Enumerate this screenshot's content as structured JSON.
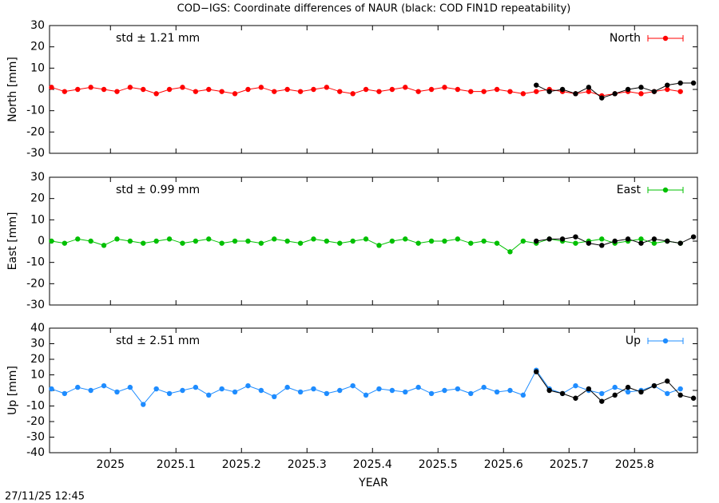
{
  "title": "COD−IGS: Coordinate differences of NAUR (black: COD FIN1D repeatability)",
  "timestamp": "27/11/25 12:45",
  "chart_data": [
    {
      "type": "line",
      "ylabel": "North [mm]",
      "annotation": "std ± 1.21 mm",
      "xlim": [
        2024.907,
        2025.896
      ],
      "xticks": [
        2025,
        2025.1,
        2025.2,
        2025.3,
        2025.4,
        2025.5,
        2025.6,
        2025.7,
        2025.8
      ],
      "ylim": [
        -30,
        30
      ],
      "yticks": [
        -30,
        -20,
        -10,
        0,
        10,
        20,
        30
      ],
      "series": [
        {
          "name": "North",
          "color": "#ff0000",
          "x": [
            2024.91,
            2024.93,
            2024.95,
            2024.97,
            2024.99,
            2025.01,
            2025.03,
            2025.05,
            2025.07,
            2025.09,
            2025.11,
            2025.13,
            2025.15,
            2025.17,
            2025.19,
            2025.21,
            2025.23,
            2025.25,
            2025.27,
            2025.29,
            2025.31,
            2025.33,
            2025.35,
            2025.37,
            2025.39,
            2025.41,
            2025.43,
            2025.45,
            2025.47,
            2025.49,
            2025.51,
            2025.53,
            2025.55,
            2025.57,
            2025.59,
            2025.61,
            2025.63,
            2025.65,
            2025.67,
            2025.69,
            2025.71,
            2025.73,
            2025.75,
            2025.77,
            2025.79,
            2025.81,
            2025.83,
            2025.85,
            2025.87
          ],
          "values": [
            1,
            -1,
            0,
            1,
            0,
            -1,
            1,
            0,
            -2,
            0,
            1,
            -1,
            0,
            -1,
            -2,
            0,
            1,
            -1,
            0,
            -1,
            0,
            1,
            -1,
            -2,
            0,
            -1,
            0,
            1,
            -1,
            0,
            1,
            0,
            -1,
            -1,
            0,
            -1,
            -2,
            -1,
            0,
            -1,
            -2,
            -1,
            -3,
            -2,
            -1,
            -2,
            -1,
            0,
            -1
          ]
        },
        {
          "color": "#000000",
          "x": [
            2025.65,
            2025.67,
            2025.69,
            2025.71,
            2025.73,
            2025.75,
            2025.77,
            2025.79,
            2025.81,
            2025.83,
            2025.85,
            2025.87,
            2025.89
          ],
          "values": [
            2,
            -1,
            0,
            -2,
            1,
            -4,
            -2,
            0,
            1,
            -1,
            2,
            3,
            3
          ]
        }
      ]
    },
    {
      "type": "line",
      "ylabel": "East [mm]",
      "annotation": "std ± 0.99 mm",
      "xlim": [
        2024.907,
        2025.896
      ],
      "xticks": [
        2025,
        2025.1,
        2025.2,
        2025.3,
        2025.4,
        2025.5,
        2025.6,
        2025.7,
        2025.8
      ],
      "ylim": [
        -30,
        30
      ],
      "yticks": [
        -30,
        -20,
        -10,
        0,
        10,
        20,
        30
      ],
      "series": [
        {
          "name": "East",
          "color": "#00c000",
          "x": [
            2024.91,
            2024.93,
            2024.95,
            2024.97,
            2024.99,
            2025.01,
            2025.03,
            2025.05,
            2025.07,
            2025.09,
            2025.11,
            2025.13,
            2025.15,
            2025.17,
            2025.19,
            2025.21,
            2025.23,
            2025.25,
            2025.27,
            2025.29,
            2025.31,
            2025.33,
            2025.35,
            2025.37,
            2025.39,
            2025.41,
            2025.43,
            2025.45,
            2025.47,
            2025.49,
            2025.51,
            2025.53,
            2025.55,
            2025.57,
            2025.59,
            2025.61,
            2025.63,
            2025.65,
            2025.67,
            2025.69,
            2025.71,
            2025.73,
            2025.75,
            2025.77,
            2025.79,
            2025.81,
            2025.83,
            2025.85,
            2025.87
          ],
          "values": [
            0,
            -1,
            1,
            0,
            -2,
            1,
            0,
            -1,
            0,
            1,
            -1,
            0,
            1,
            -1,
            0,
            0,
            -1,
            1,
            0,
            -1,
            1,
            0,
            -1,
            0,
            1,
            -2,
            0,
            1,
            -1,
            0,
            0,
            1,
            -1,
            0,
            -1,
            -5,
            0,
            -1,
            1,
            0,
            -1,
            0,
            1,
            -1,
            0,
            1,
            -1,
            0,
            -1
          ]
        },
        {
          "color": "#000000",
          "x": [
            2025.65,
            2025.67,
            2025.69,
            2025.71,
            2025.73,
            2025.75,
            2025.77,
            2025.79,
            2025.81,
            2025.83,
            2025.85,
            2025.87,
            2025.89
          ],
          "values": [
            0,
            1,
            1,
            2,
            -1,
            -2,
            0,
            1,
            -1,
            1,
            0,
            -1,
            2
          ]
        }
      ]
    },
    {
      "type": "line",
      "ylabel": "Up [mm]",
      "annotation": "std ± 2.51 mm",
      "xlabel": "YEAR",
      "xlim": [
        2024.907,
        2025.896
      ],
      "xticks": [
        2025,
        2025.1,
        2025.2,
        2025.3,
        2025.4,
        2025.5,
        2025.6,
        2025.7,
        2025.8
      ],
      "ylim": [
        -40,
        40
      ],
      "yticks": [
        -40,
        -30,
        -20,
        -10,
        0,
        10,
        20,
        30,
        40
      ],
      "series": [
        {
          "name": "Up",
          "color": "#1e8cff",
          "x": [
            2024.91,
            2024.93,
            2024.95,
            2024.97,
            2024.99,
            2025.01,
            2025.03,
            2025.05,
            2025.07,
            2025.09,
            2025.11,
            2025.13,
            2025.15,
            2025.17,
            2025.19,
            2025.21,
            2025.23,
            2025.25,
            2025.27,
            2025.29,
            2025.31,
            2025.33,
            2025.35,
            2025.37,
            2025.39,
            2025.41,
            2025.43,
            2025.45,
            2025.47,
            2025.49,
            2025.51,
            2025.53,
            2025.55,
            2025.57,
            2025.59,
            2025.61,
            2025.63,
            2025.65,
            2025.67,
            2025.69,
            2025.71,
            2025.73,
            2025.75,
            2025.77,
            2025.79,
            2025.81,
            2025.83,
            2025.85,
            2025.87
          ],
          "values": [
            1,
            -2,
            2,
            0,
            3,
            -1,
            2,
            -9,
            1,
            -2,
            0,
            2,
            -3,
            1,
            -1,
            3,
            0,
            -4,
            2,
            -1,
            1,
            -2,
            0,
            3,
            -3,
            1,
            0,
            -1,
            2,
            -2,
            0,
            1,
            -2,
            2,
            -1,
            0,
            -3,
            13,
            1,
            -2,
            3,
            0,
            -2,
            2,
            -1,
            0,
            3,
            -2,
            1
          ]
        },
        {
          "color": "#000000",
          "x": [
            2025.65,
            2025.67,
            2025.69,
            2025.71,
            2025.73,
            2025.75,
            2025.77,
            2025.79,
            2025.81,
            2025.83,
            2025.85,
            2025.87,
            2025.89
          ],
          "values": [
            12,
            0,
            -2,
            -5,
            1,
            -7,
            -3,
            2,
            -1,
            3,
            6,
            -3,
            -5
          ]
        }
      ]
    }
  ]
}
